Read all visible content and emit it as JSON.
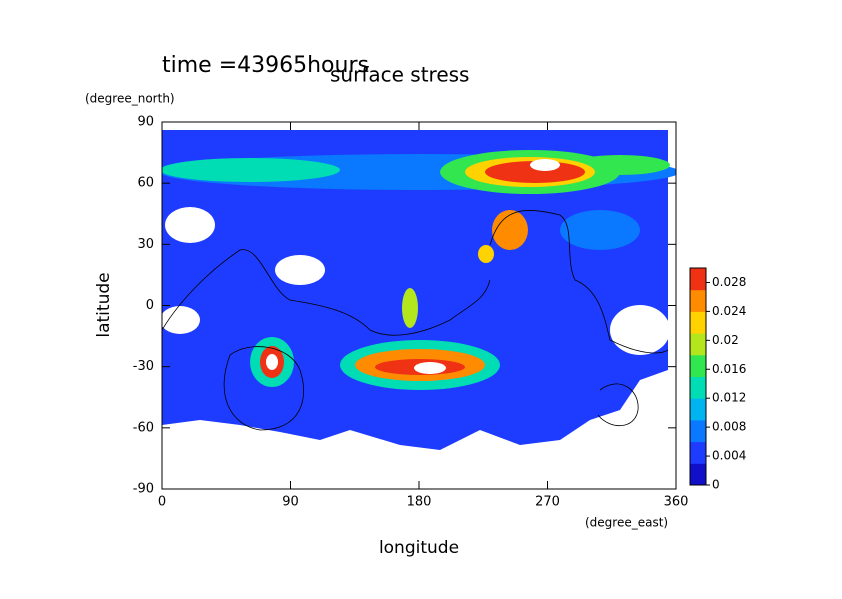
{
  "chart_data": {
    "type": "contour",
    "title": "surface stress",
    "subtitle": "time =43965hours",
    "xlabel": "longitude",
    "ylabel": "latitude",
    "xunit": "(degree_east)",
    "yunit": "(degree_north)",
    "xlim": [
      0,
      360
    ],
    "ylim": [
      -90,
      90
    ],
    "xticks": [
      0,
      90,
      180,
      270,
      360
    ],
    "yticks": [
      -90,
      -60,
      -30,
      0,
      30,
      60,
      90
    ],
    "colorbar": {
      "lim": [
        0,
        0.03
      ],
      "ticks": [
        0,
        0.004,
        0.008,
        0.012,
        0.016,
        0.02,
        0.024,
        0.028
      ],
      "colors": [
        "#1010c8",
        "#1e3cff",
        "#0a78ff",
        "#00b4f0",
        "#00dcb4",
        "#32e650",
        "#b4e61e",
        "#ffd200",
        "#ff8c00",
        "#f03214"
      ]
    }
  }
}
